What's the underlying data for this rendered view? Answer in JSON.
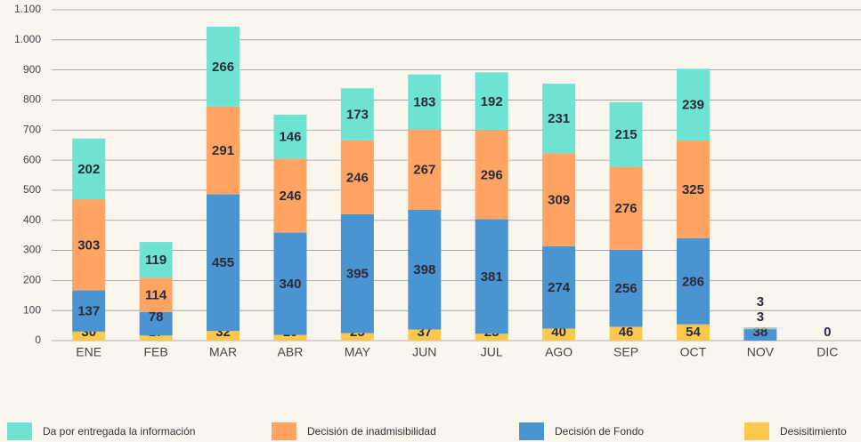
{
  "chart_data": {
    "type": "stacked_bar",
    "categories": [
      "ENE",
      "FEB",
      "MAR",
      "ABR",
      "MAY",
      "JUN",
      "JUL",
      "AGO",
      "SEP",
      "OCT",
      "NOV",
      "DIC"
    ],
    "series": [
      {
        "name": "Desisitimiento",
        "color": "#fcc84d",
        "values": [
          30,
          17,
          32,
          19,
          25,
          37,
          23,
          40,
          46,
          54,
          null,
          0
        ]
      },
      {
        "name": "Decisión de Fondo",
        "color": "#4a94d2",
        "values": [
          137,
          78,
          455,
          340,
          395,
          398,
          381,
          274,
          256,
          286,
          38,
          null
        ]
      },
      {
        "name": "Decisión de inadmisibilidad",
        "color": "#ffa463",
        "values": [
          303,
          114,
          291,
          246,
          246,
          267,
          296,
          309,
          276,
          325,
          3,
          null
        ]
      },
      {
        "name": "Da por entregada la información",
        "color": "#6fe3d3",
        "values": [
          202,
          119,
          266,
          146,
          173,
          183,
          192,
          231,
          215,
          239,
          3,
          null
        ]
      }
    ],
    "ylim": [
      0,
      1100
    ],
    "yticks": [
      0,
      100,
      200,
      300,
      400,
      500,
      600,
      700,
      800,
      900,
      {
        "value": 1000,
        "label": "1.000"
      },
      {
        "value": 1100,
        "label": "1.100"
      }
    ],
    "grid": true,
    "legend": "bottom"
  }
}
